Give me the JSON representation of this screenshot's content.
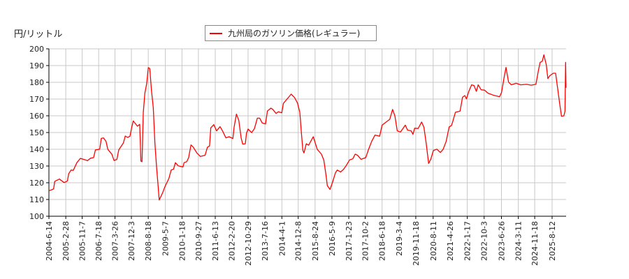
{
  "chart_data": {
    "type": "line",
    "title": "",
    "ylabel": "円/リットル",
    "xlabel": "",
    "ylim": [
      100,
      200
    ],
    "xlim": [
      "2004-06-14",
      "2026-03-15"
    ],
    "grid": true,
    "legend_placement": "top-center",
    "yticks": [
      "100",
      "110",
      "120",
      "130",
      "140",
      "150",
      "160",
      "170",
      "180",
      "190",
      "200"
    ],
    "xticks": [
      "2004-6-14",
      "2005-2-28",
      "2005-11-7",
      "2006-7-18",
      "2007-3-26",
      "2007-12-3",
      "2008-8-18",
      "2009-5-7",
      "2010-1-18",
      "2010-9-27",
      "2011-6-13",
      "2012-2-20",
      "2012-10-29",
      "2013-7-16",
      "2014-4-1",
      "2014-12-8",
      "2015-8-24",
      "2016-5-9",
      "2017-1-23",
      "2017-10-2",
      "2018-6-18",
      "2019-3-4",
      "2019-11-18",
      "2020-8-11",
      "2021-4-26",
      "2022-1-17",
      "2022-10-3",
      "2023-6-26",
      "2024-3-11",
      "2024-11-18",
      "2025-8-12"
    ],
    "series": [
      {
        "name": "九州局のガソリン価格(レギュラー)",
        "color": "#ff0000",
        "points": [
          [
            "2004-06-21",
            115.3
          ],
          [
            "2004-08-25",
            116.3
          ],
          [
            "2004-09-11",
            120.8
          ],
          [
            "2004-11-22",
            122.2
          ],
          [
            "2005-02-03",
            120.1
          ],
          [
            "2005-03-26",
            121.1
          ],
          [
            "2005-04-13",
            125.3
          ],
          [
            "2005-05-19",
            127.6
          ],
          [
            "2005-06-24",
            127.4
          ],
          [
            "2005-08-17",
            132.0
          ],
          [
            "2005-10-10",
            134.6
          ],
          [
            "2005-12-03",
            133.9
          ],
          [
            "2006-01-26",
            133.2
          ],
          [
            "2006-03-18",
            134.7
          ],
          [
            "2006-05-01",
            135.0
          ],
          [
            "2006-05-29",
            139.6
          ],
          [
            "2006-08-03",
            140.1
          ],
          [
            "2006-08-27",
            146.5
          ],
          [
            "2006-10-02",
            146.8
          ],
          [
            "2006-11-08",
            144.7
          ],
          [
            "2006-12-06",
            139.9
          ],
          [
            "2007-02-06",
            137.0
          ],
          [
            "2007-03-11",
            133.3
          ],
          [
            "2007-04-23",
            133.9
          ],
          [
            "2007-05-22",
            139.6
          ],
          [
            "2007-08-02",
            143.8
          ],
          [
            "2007-08-30",
            147.9
          ],
          [
            "2007-10-06",
            147.1
          ],
          [
            "2007-11-11",
            147.8
          ],
          [
            "2007-12-05",
            152.6
          ],
          [
            "2008-01-01",
            156.9
          ],
          [
            "2008-03-04",
            153.8
          ],
          [
            "2008-04-09",
            154.9
          ],
          [
            "2008-04-27",
            132.9
          ],
          [
            "2008-05-14",
            132.6
          ],
          [
            "2008-06-02",
            161.8
          ],
          [
            "2008-06-27",
            173.6
          ],
          [
            "2008-07-25",
            179.2
          ],
          [
            "2008-08-19",
            188.8
          ],
          [
            "2008-09-10",
            188.2
          ],
          [
            "2008-10-06",
            175.3
          ],
          [
            "2008-11-03",
            164.9
          ],
          [
            "2008-11-29",
            143.3
          ],
          [
            "2008-12-23",
            129.4
          ],
          [
            "2009-01-11",
            120.4
          ],
          [
            "2009-02-02",
            109.7
          ],
          [
            "2009-03-25",
            113.9
          ],
          [
            "2009-04-30",
            117.6
          ],
          [
            "2009-06-30",
            122.5
          ],
          [
            "2009-08-05",
            127.6
          ],
          [
            "2009-09-10",
            128.1
          ],
          [
            "2009-10-09",
            132.0
          ],
          [
            "2009-11-21",
            130.1
          ],
          [
            "2010-02-02",
            129.4
          ],
          [
            "2010-02-19",
            132.0
          ],
          [
            "2010-04-01",
            132.6
          ],
          [
            "2010-04-30",
            135.0
          ],
          [
            "2010-06-05",
            142.6
          ],
          [
            "2010-07-11",
            141.2
          ],
          [
            "2010-09-04",
            137.8
          ],
          [
            "2010-10-27",
            135.7
          ],
          [
            "2011-01-07",
            136.4
          ],
          [
            "2011-02-13",
            141.2
          ],
          [
            "2011-03-17",
            141.9
          ],
          [
            "2011-04-05",
            152.8
          ],
          [
            "2011-05-21",
            154.7
          ],
          [
            "2011-07-03",
            151.0
          ],
          [
            "2011-08-26",
            153.5
          ],
          [
            "2011-10-01",
            151.0
          ],
          [
            "2011-11-24",
            146.8
          ],
          [
            "2012-01-10",
            147.5
          ],
          [
            "2012-03-10",
            146.4
          ],
          [
            "2012-03-28",
            153.1
          ],
          [
            "2012-05-03",
            161.0
          ],
          [
            "2012-06-09",
            157.2
          ],
          [
            "2012-07-14",
            146.8
          ],
          [
            "2012-08-08",
            143.1
          ],
          [
            "2012-09-17",
            143.3
          ],
          [
            "2012-10-05",
            149.6
          ],
          [
            "2012-10-29",
            152.1
          ],
          [
            "2012-12-22",
            149.9
          ],
          [
            "2013-02-04",
            152.4
          ],
          [
            "2013-03-20",
            158.6
          ],
          [
            "2013-04-26",
            158.6
          ],
          [
            "2013-06-01",
            155.8
          ],
          [
            "2013-07-24",
            155.1
          ],
          [
            "2013-08-22",
            162.8
          ],
          [
            "2013-10-15",
            164.6
          ],
          [
            "2013-11-09",
            163.9
          ],
          [
            "2014-01-02",
            161.4
          ],
          [
            "2014-02-07",
            162.4
          ],
          [
            "2014-03-31",
            161.8
          ],
          [
            "2014-04-25",
            167.4
          ],
          [
            "2014-06-29",
            170.4
          ],
          [
            "2014-08-22",
            172.9
          ],
          [
            "2014-10-15",
            170.8
          ],
          [
            "2014-11-27",
            167.6
          ],
          [
            "2015-01-02",
            162.1
          ],
          [
            "2015-01-23",
            151.0
          ],
          [
            "2015-02-18",
            139.2
          ],
          [
            "2015-03-06",
            137.8
          ],
          [
            "2015-04-11",
            143.3
          ],
          [
            "2015-05-17",
            142.4
          ],
          [
            "2015-07-27",
            147.5
          ],
          [
            "2015-09-27",
            139.9
          ],
          [
            "2015-11-30",
            137.1
          ],
          [
            "2016-01-05",
            133.6
          ],
          [
            "2016-02-11",
            123.9
          ],
          [
            "2016-02-28",
            118.3
          ],
          [
            "2016-04-10",
            116.0
          ],
          [
            "2016-05-19",
            120.4
          ],
          [
            "2016-07-02",
            126.0
          ],
          [
            "2016-07-30",
            127.6
          ],
          [
            "2016-09-19",
            126.4
          ],
          [
            "2016-11-05",
            128.1
          ],
          [
            "2016-12-11",
            130.1
          ],
          [
            "2017-02-03",
            133.6
          ],
          [
            "2017-03-26",
            134.3
          ],
          [
            "2017-05-01",
            137.1
          ],
          [
            "2017-06-07",
            136.4
          ],
          [
            "2017-07-30",
            134.0
          ],
          [
            "2017-10-10",
            135.0
          ],
          [
            "2017-11-16",
            139.2
          ],
          [
            "2018-01-09",
            144.7
          ],
          [
            "2018-03-02",
            148.5
          ],
          [
            "2018-05-12",
            147.8
          ],
          [
            "2018-06-18",
            154.4
          ],
          [
            "2018-08-28",
            156.5
          ],
          [
            "2018-10-14",
            157.9
          ],
          [
            "2018-11-26",
            163.8
          ],
          [
            "2019-01-01",
            160.0
          ],
          [
            "2019-02-06",
            151.0
          ],
          [
            "2019-03-29",
            150.3
          ],
          [
            "2019-06-10",
            154.4
          ],
          [
            "2019-07-15",
            151.4
          ],
          [
            "2019-09-08",
            151.0
          ],
          [
            "2019-10-06",
            148.9
          ],
          [
            "2019-11-01",
            152.6
          ],
          [
            "2019-12-24",
            152.4
          ],
          [
            "2020-02-16",
            156.3
          ],
          [
            "2020-03-22",
            153.1
          ],
          [
            "2020-04-27",
            143.3
          ],
          [
            "2020-06-02",
            131.5
          ],
          [
            "2020-07-08",
            134.3
          ],
          [
            "2020-08-13",
            139.2
          ],
          [
            "2020-10-06",
            140.1
          ],
          [
            "2020-11-29",
            138.1
          ],
          [
            "2021-01-11",
            139.9
          ],
          [
            "2021-02-27",
            144.7
          ],
          [
            "2021-04-13",
            153.3
          ],
          [
            "2021-05-19",
            154.2
          ],
          [
            "2021-06-13",
            157.2
          ],
          [
            "2021-07-19",
            162.1
          ],
          [
            "2021-09-29",
            162.8
          ],
          [
            "2021-11-05",
            171.1
          ],
          [
            "2021-12-10",
            172.1
          ],
          [
            "2022-01-04",
            170.1
          ],
          [
            "2022-02-10",
            174.6
          ],
          [
            "2022-03-25",
            178.5
          ],
          [
            "2022-04-30",
            178.1
          ],
          [
            "2022-06-06",
            174.6
          ],
          [
            "2022-07-04",
            178.5
          ],
          [
            "2022-08-16",
            175.6
          ],
          [
            "2022-10-09",
            175.3
          ],
          [
            "2022-12-02",
            173.5
          ],
          [
            "2023-03-01",
            172.2
          ],
          [
            "2023-05-29",
            171.4
          ],
          [
            "2023-06-27",
            173.9
          ],
          [
            "2023-08-09",
            183.6
          ],
          [
            "2023-09-04",
            188.9
          ],
          [
            "2023-10-13",
            180.1
          ],
          [
            "2023-11-25",
            178.5
          ],
          [
            "2024-02-05",
            179.4
          ],
          [
            "2024-04-16",
            178.5
          ],
          [
            "2024-07-14",
            178.8
          ],
          [
            "2024-09-25",
            178.3
          ],
          [
            "2024-12-06",
            178.8
          ],
          [
            "2025-01-11",
            186.4
          ],
          [
            "2025-02-09",
            191.9
          ],
          [
            "2025-03-14",
            192.6
          ],
          [
            "2025-04-08",
            196.4
          ],
          [
            "2025-05-14",
            190.6
          ],
          [
            "2025-06-08",
            182.2
          ],
          [
            "2025-07-07",
            183.9
          ],
          [
            "2025-08-30",
            185.4
          ],
          [
            "2025-10-05",
            185.4
          ],
          [
            "2025-11-04",
            176.7
          ],
          [
            "2025-12-05",
            167.6
          ],
          [
            "2026-01-03",
            159.7
          ],
          [
            "2026-02-09",
            160.0
          ],
          [
            "2026-02-26",
            162.8
          ],
          [
            "2026-03-07",
            191.9
          ],
          [
            "2026-03-14",
            176.7
          ]
        ]
      }
    ]
  }
}
